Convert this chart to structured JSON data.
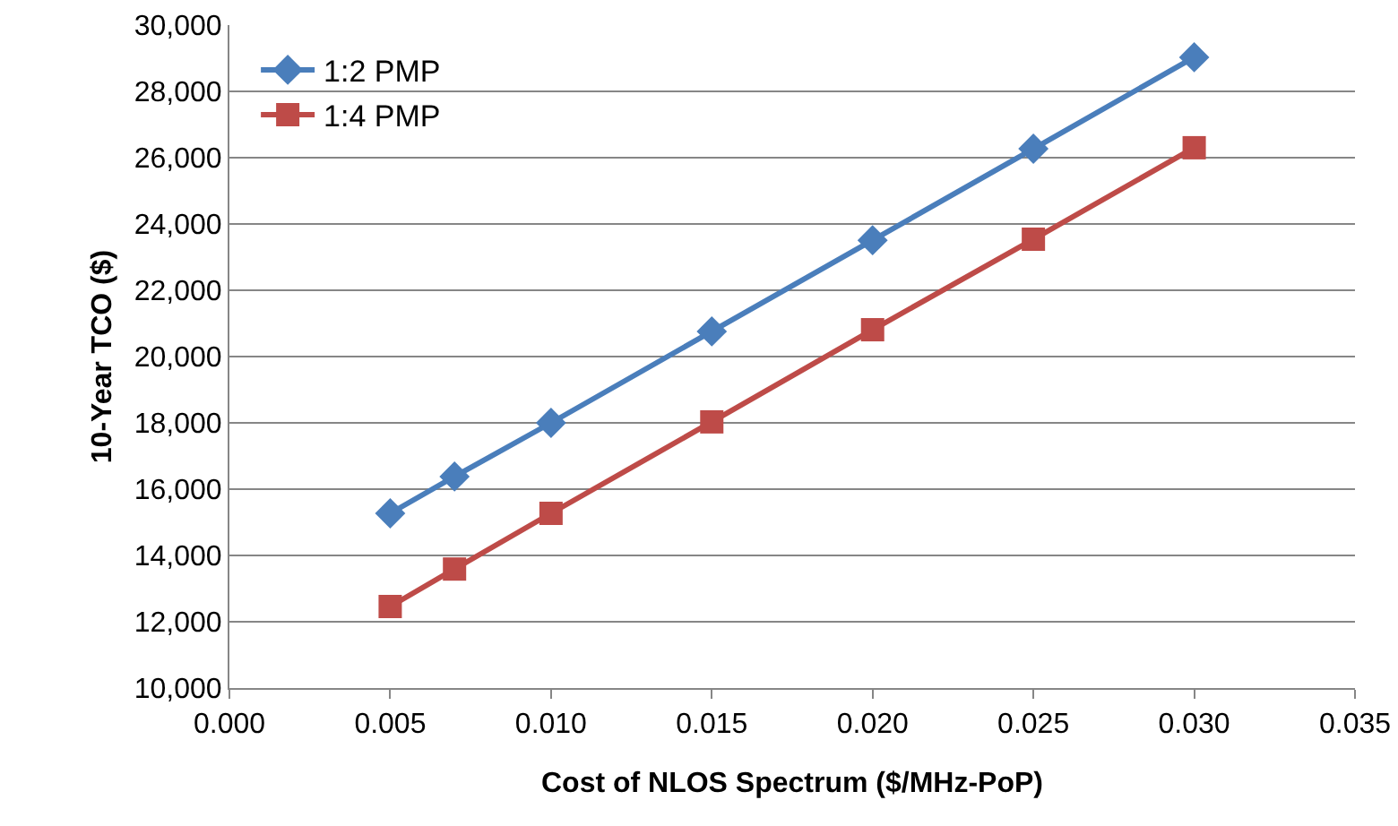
{
  "chart_data": {
    "type": "line",
    "xlabel": "Cost of NLOS Spectrum ($/MHz-PoP)",
    "ylabel": "10-Year TCO ($)",
    "x": [
      0.005,
      0.007,
      0.01,
      0.015,
      0.02,
      0.025,
      0.03
    ],
    "series": [
      {
        "name": "1:2 PMP",
        "color": "#4a7ebb",
        "values": [
          15270,
          16380,
          18000,
          20760,
          23510,
          26270,
          29030
        ],
        "marker": "diamond"
      },
      {
        "name": "1:4 PMP",
        "color": "#be4b48",
        "values": [
          12460,
          13590,
          15270,
          18030,
          20810,
          23540,
          26300
        ],
        "marker": "square"
      }
    ],
    "xlim": [
      0,
      0.035
    ],
    "xticks": [
      {
        "value": 0,
        "label": "0.000"
      },
      {
        "value": 0.005,
        "label": "0.005"
      },
      {
        "value": 0.01,
        "label": "0.010"
      },
      {
        "value": 0.015,
        "label": "0.015"
      },
      {
        "value": 0.02,
        "label": "0.020"
      },
      {
        "value": 0.025,
        "label": "0.025"
      },
      {
        "value": 0.03,
        "label": "0.030"
      },
      {
        "value": 0.035,
        "label": "0.035"
      }
    ],
    "ylim": [
      10000,
      30000
    ],
    "yticks": [
      {
        "value": 10000,
        "label": "10,000"
      },
      {
        "value": 12000,
        "label": "12,000"
      },
      {
        "value": 14000,
        "label": "14,000"
      },
      {
        "value": 16000,
        "label": "16,000"
      },
      {
        "value": 18000,
        "label": "18,000"
      },
      {
        "value": 20000,
        "label": "20,000"
      },
      {
        "value": 22000,
        "label": "22,000"
      },
      {
        "value": 24000,
        "label": "24,000"
      },
      {
        "value": 26000,
        "label": "26,000"
      },
      {
        "value": 28000,
        "label": "28,000"
      },
      {
        "value": 30000,
        "label": "30,000"
      }
    ],
    "grid": "y",
    "legend": "top left",
    "line_style": "solid"
  }
}
